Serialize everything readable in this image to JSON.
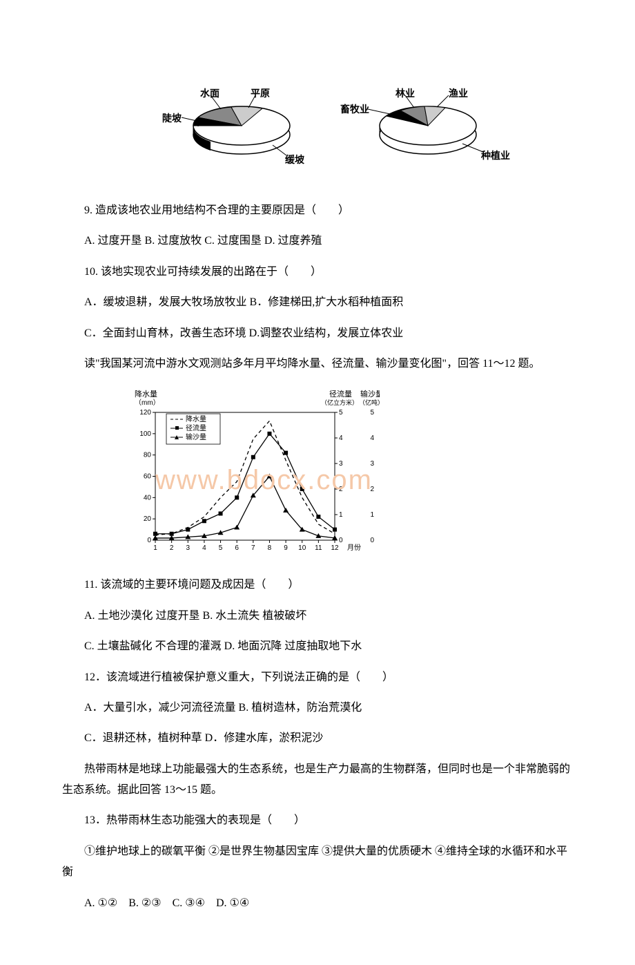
{
  "pies": {
    "left": {
      "labels": {
        "top1": "水面",
        "top2": "平原",
        "left": "陡坡",
        "bottom": "缓坡"
      }
    },
    "right": {
      "labels": {
        "top1": "林业",
        "top2": "渔业",
        "left": "畜牧业",
        "bottom": "种植业"
      }
    }
  },
  "q9": {
    "text": "9. 造成该地农业用地结构不合理的主要原因是（　　）",
    "opts": "A. 过度开垦  B. 过度放牧   C. 过度围垦   D. 过度养殖"
  },
  "q10": {
    "text": "10. 该地实现农业可持续发展的出路在于（　　）",
    "a": "A．缓坡退耕，发展大牧场放牧业   B．修建梯田,扩大水稻种植面积",
    "c": "C．全面封山育林，改善生态环境   D.调整农业结构，发展立体农业"
  },
  "intro11": "读\"我国某河流中游水文观测站多年月平均降水量、径流量、输沙量变化图\"，回答 11～12 题。",
  "chart": {
    "y1_label": "降水量\n（mm）",
    "y2_label": "径流量\n（亿立方米）",
    "y3_label": "输沙量\n（亿吨）",
    "x_label": "月份",
    "y1_ticks": [
      "0",
      "20",
      "40",
      "60",
      "80",
      "100",
      "120"
    ],
    "y2_ticks": [
      "0",
      "1",
      "2",
      "3",
      "4",
      "5"
    ],
    "x_ticks": [
      "1",
      "2",
      "3",
      "4",
      "5",
      "6",
      "7",
      "8",
      "9",
      "10",
      "11",
      "12"
    ],
    "legend": {
      "s1": "降水量",
      "s2": "径流量",
      "s3": "输沙量"
    },
    "precip": [
      5,
      6,
      12,
      22,
      40,
      55,
      95,
      112,
      75,
      40,
      15,
      6
    ],
    "runoff": [
      6,
      6,
      10,
      18,
      25,
      40,
      78,
      100,
      82,
      48,
      22,
      10
    ],
    "sediment": [
      2,
      2,
      3,
      4,
      7,
      12,
      42,
      60,
      28,
      10,
      4,
      2
    ],
    "watermark": "www.bdocx.com"
  },
  "q11": {
    "text": "11. 该流域的主要环境问题及成因是（　　）",
    "a": "A. 土地沙漠化 过度开垦   B. 水土流失 植被破坏",
    "c": "C. 土壤盐碱化 不合理的灌溉   D. 地面沉降 过度抽取地下水"
  },
  "q12": {
    "text": "12．该流域进行植被保护意义重大，下列说法正确的是（　　）",
    "a": "A．大量引水，减少河流径流量   B. 植树造林，防治荒漠化",
    "c": "C．退耕还林，植树种草   D．修建水库，淤积泥沙"
  },
  "intro13": "热带雨林是地球上功能最强大的生态系统，也是生产力最高的生物群落，但同时也是一个非常脆弱的生态系统。据此回答 13～15 题。",
  "q13": {
    "text": "13．热带雨林生态功能强大的表现是（　　）",
    "body": "①维护地球上的碳氧平衡 ②是世界生物基因宝库 ③提供大量的优质硬木 ④维持全球的水循环和水平衡",
    "opts": "A. ①②　B. ②③　C. ③④　D. ①④"
  }
}
